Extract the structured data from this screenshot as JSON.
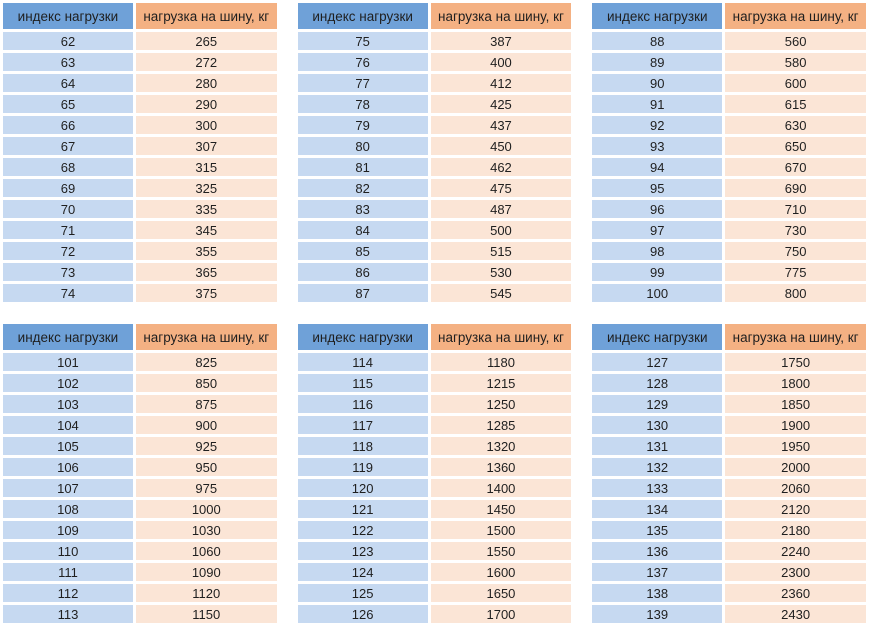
{
  "colors": {
    "header_index_bg": "#6FA1D8",
    "header_load_bg": "#F4B183",
    "cell_index_bg": "#C6D9F1",
    "cell_load_bg": "#FBE5D6",
    "gap_bg": "#FFFFFF",
    "text": "#1F1F1F"
  },
  "chart_data": {
    "type": "table",
    "columns": [
      "индекс нагрузки",
      "нагрузка на шину, кг"
    ],
    "layout": "6 two-column tables arranged in a 3x2 grid",
    "tables": [
      {
        "rows": [
          [
            62,
            265
          ],
          [
            63,
            272
          ],
          [
            64,
            280
          ],
          [
            65,
            290
          ],
          [
            66,
            300
          ],
          [
            67,
            307
          ],
          [
            68,
            315
          ],
          [
            69,
            325
          ],
          [
            70,
            335
          ],
          [
            71,
            345
          ],
          [
            72,
            355
          ],
          [
            73,
            365
          ],
          [
            74,
            375
          ]
        ]
      },
      {
        "rows": [
          [
            75,
            387
          ],
          [
            76,
            400
          ],
          [
            77,
            412
          ],
          [
            78,
            425
          ],
          [
            79,
            437
          ],
          [
            80,
            450
          ],
          [
            81,
            462
          ],
          [
            82,
            475
          ],
          [
            83,
            487
          ],
          [
            84,
            500
          ],
          [
            85,
            515
          ],
          [
            86,
            530
          ],
          [
            87,
            545
          ]
        ]
      },
      {
        "rows": [
          [
            88,
            560
          ],
          [
            89,
            580
          ],
          [
            90,
            600
          ],
          [
            91,
            615
          ],
          [
            92,
            630
          ],
          [
            93,
            650
          ],
          [
            94,
            670
          ],
          [
            95,
            690
          ],
          [
            96,
            710
          ],
          [
            97,
            730
          ],
          [
            98,
            750
          ],
          [
            99,
            775
          ],
          [
            100,
            800
          ]
        ]
      },
      {
        "rows": [
          [
            101,
            825
          ],
          [
            102,
            850
          ],
          [
            103,
            875
          ],
          [
            104,
            900
          ],
          [
            105,
            925
          ],
          [
            106,
            950
          ],
          [
            107,
            975
          ],
          [
            108,
            1000
          ],
          [
            109,
            1030
          ],
          [
            110,
            1060
          ],
          [
            111,
            1090
          ],
          [
            112,
            1120
          ],
          [
            113,
            1150
          ]
        ]
      },
      {
        "rows": [
          [
            114,
            1180
          ],
          [
            115,
            1215
          ],
          [
            116,
            1250
          ],
          [
            117,
            1285
          ],
          [
            118,
            1320
          ],
          [
            119,
            1360
          ],
          [
            120,
            1400
          ],
          [
            121,
            1450
          ],
          [
            122,
            1500
          ],
          [
            123,
            1550
          ],
          [
            124,
            1600
          ],
          [
            125,
            1650
          ],
          [
            126,
            1700
          ]
        ]
      },
      {
        "rows": [
          [
            127,
            1750
          ],
          [
            128,
            1800
          ],
          [
            129,
            1850
          ],
          [
            130,
            1900
          ],
          [
            131,
            1950
          ],
          [
            132,
            2000
          ],
          [
            133,
            2060
          ],
          [
            134,
            2120
          ],
          [
            135,
            2180
          ],
          [
            136,
            2240
          ],
          [
            137,
            2300
          ],
          [
            138,
            2360
          ],
          [
            139,
            2430
          ]
        ]
      }
    ]
  }
}
